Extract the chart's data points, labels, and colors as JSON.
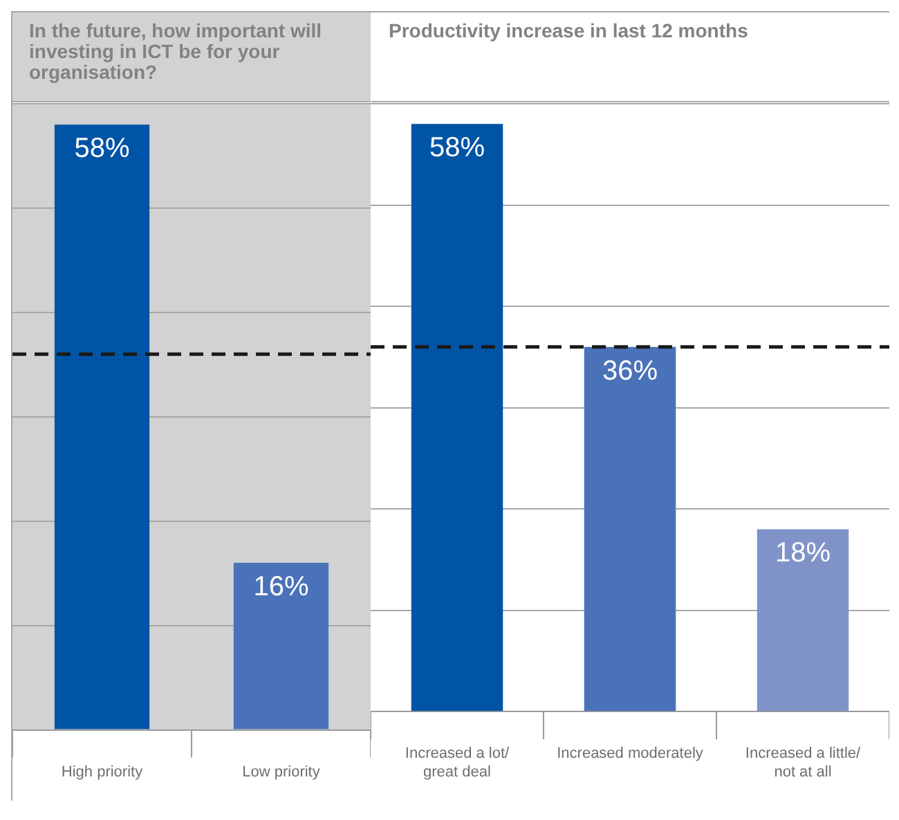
{
  "chart_data": [
    {
      "type": "bar",
      "title": "In the future, how important will investing in ICT be for your organisation?",
      "categories": [
        "High priority",
        "Low priority"
      ],
      "values": [
        58,
        16
      ],
      "value_labels": [
        "58%",
        "16%"
      ],
      "colors": [
        "#0054a6",
        "#4a72b8"
      ],
      "grid": "y",
      "tick_labels": "x",
      "legend": false,
      "ref_lines": [
        {
          "axis": "y",
          "value": 36,
          "color": "#1a1a1a",
          "line_style": "dashed"
        }
      ]
    },
    {
      "type": "bar",
      "title": "Productivity increase in last 12 months",
      "categories": [
        "Increased a lot/ great deal",
        "Increased moderately",
        "Increased a little/ not at all"
      ],
      "values": [
        58,
        36,
        18
      ],
      "value_labels": [
        "58%",
        "36%",
        "18%"
      ],
      "colors": [
        "#0054a6",
        "#4a72b8",
        "#8093c9"
      ],
      "grid": "y",
      "tick_labels": "x",
      "legend": false,
      "ref_lines": [
        {
          "axis": "y",
          "value": 36,
          "color": "#1a1a1a",
          "line_style": "dashed"
        }
      ]
    }
  ]
}
